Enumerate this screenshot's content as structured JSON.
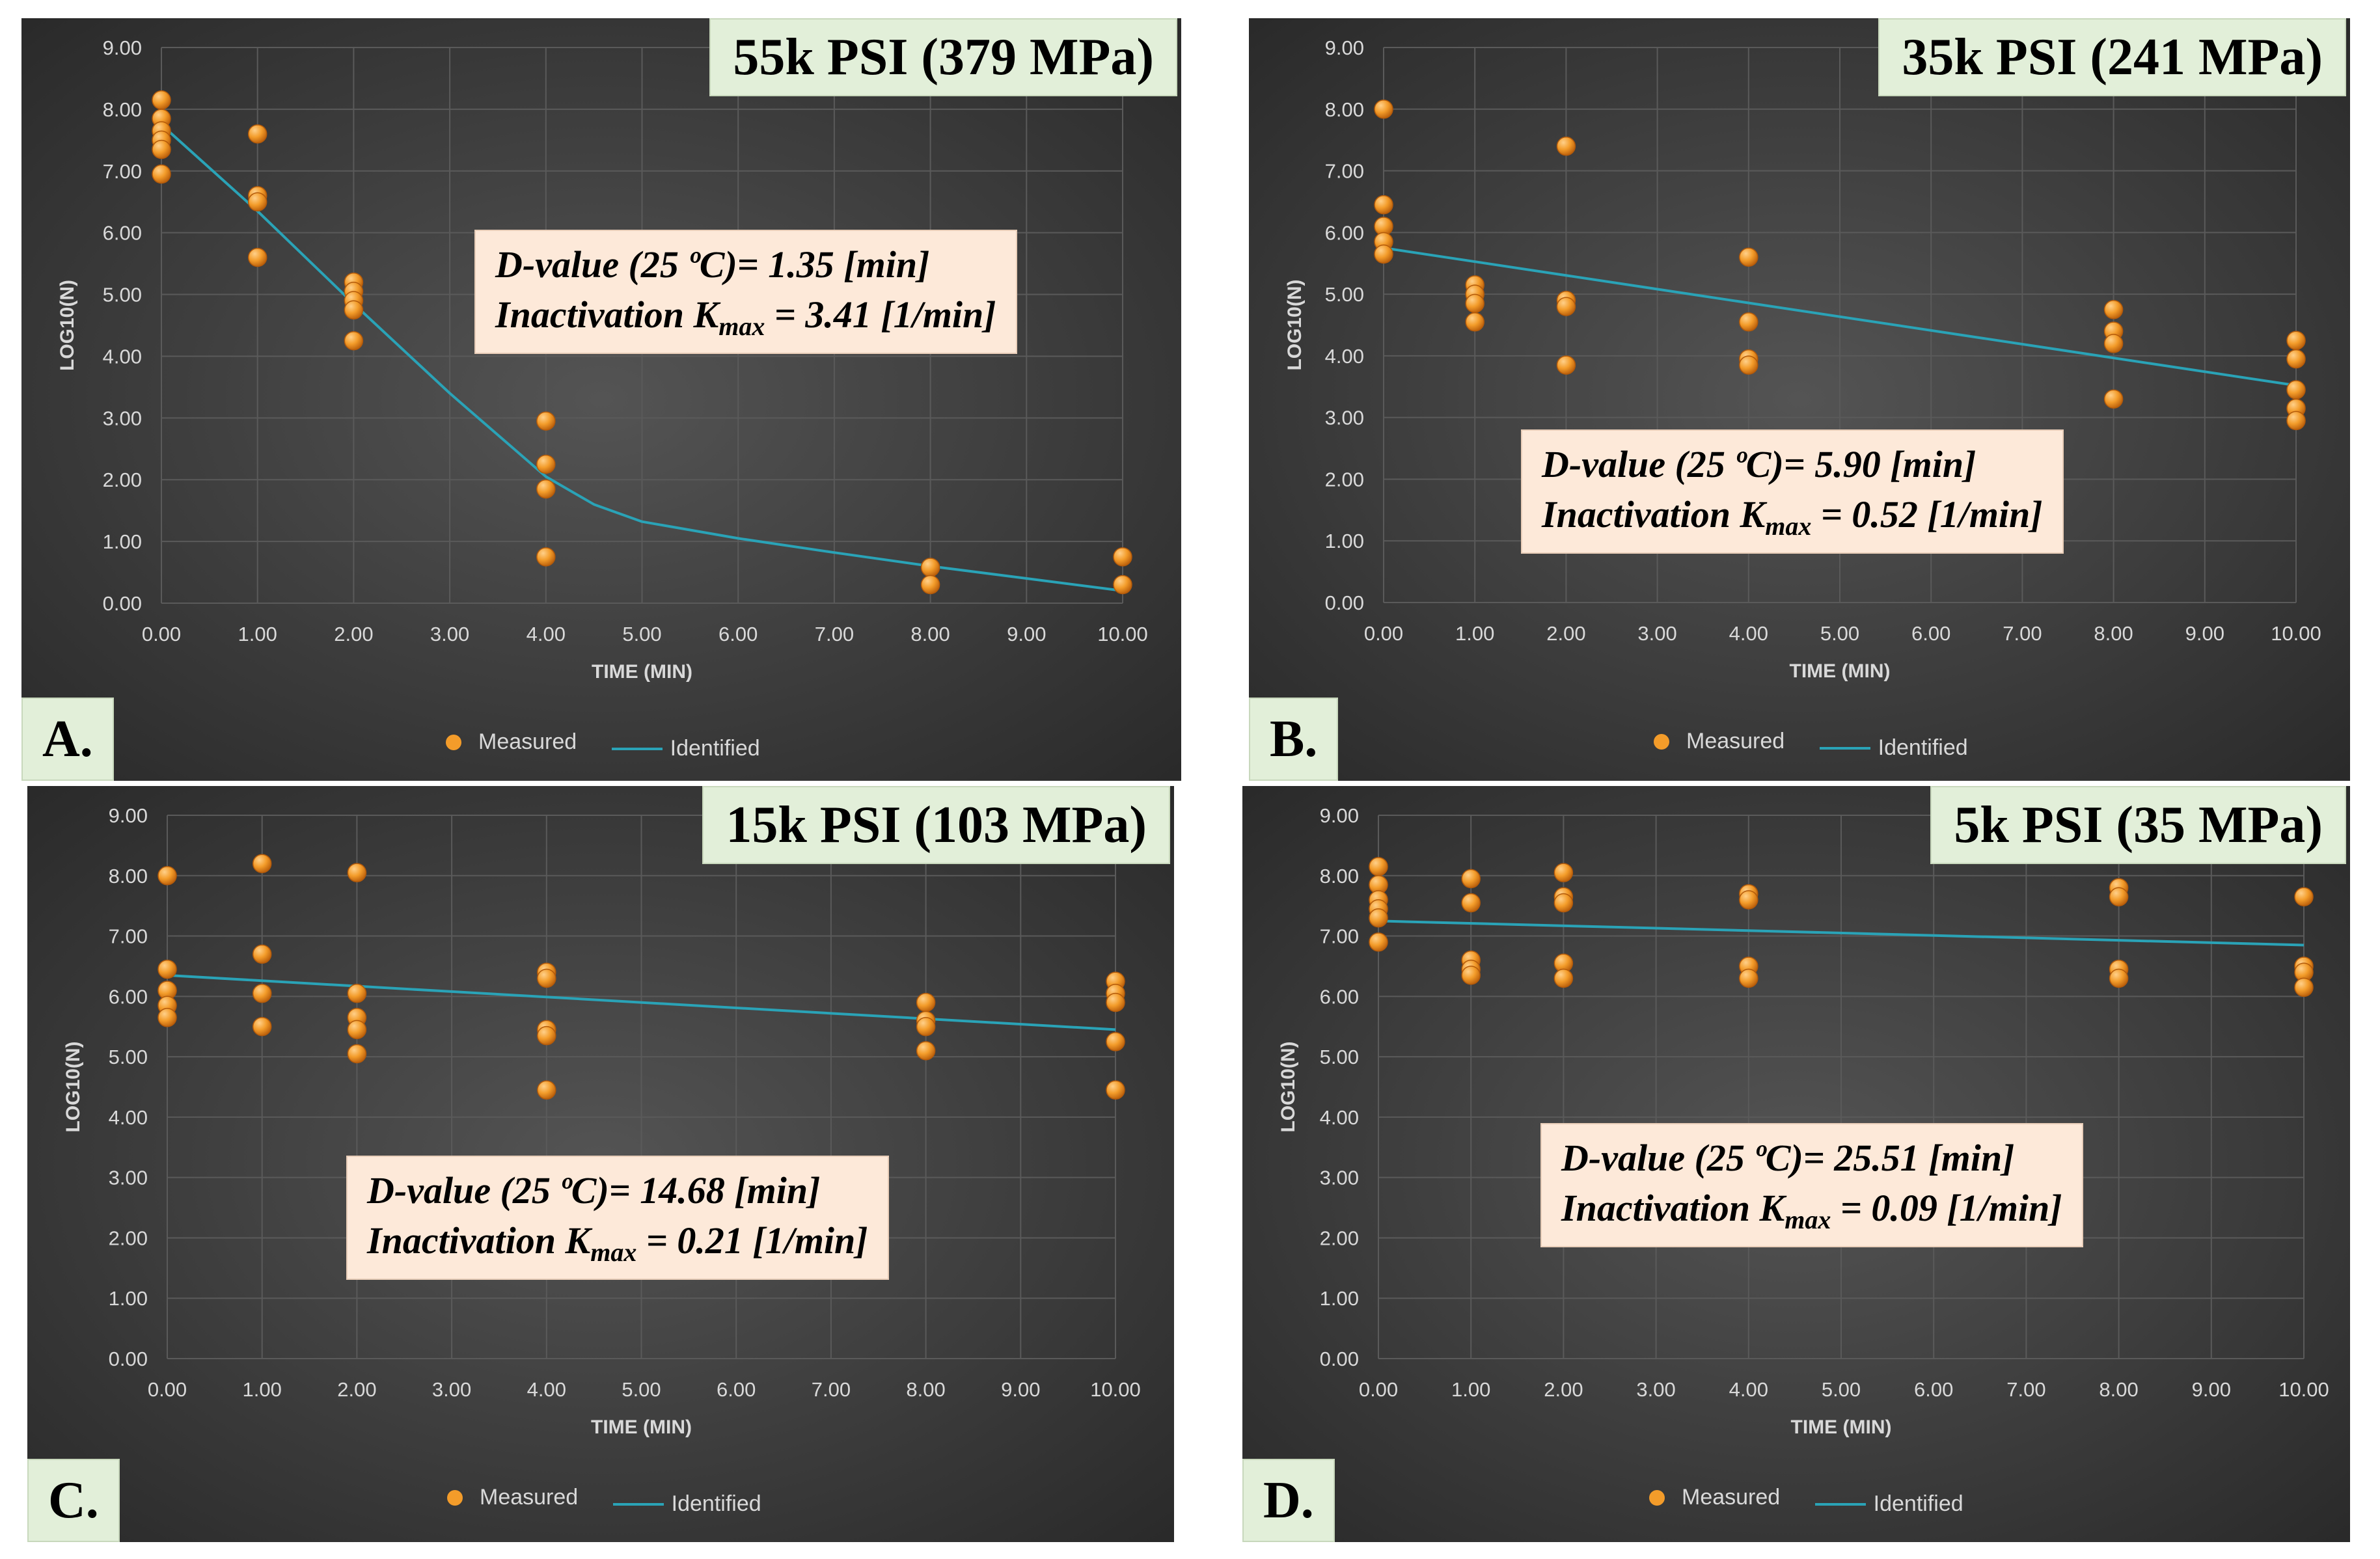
{
  "legend": {
    "measured": "Measured",
    "identified": "Identified"
  },
  "colors": {
    "measured": "#f39c2a",
    "identified": "#2aa3b7",
    "background": "#3b3b3b",
    "grid": "#5a5a5a"
  },
  "chart_data": [
    {
      "type": "scatter",
      "panel": "A.",
      "title": "55k PSI (379 MPa)",
      "info_line1": "D-value (25 ºC)= 1.35  [min]",
      "info_line2_pre": "Inactivation K",
      "info_line2_sub": "max",
      "info_line2_post": " = 3.41 [1/min]",
      "xlabel": "TIME (MIN)",
      "ylabel": "LOG10(N)",
      "xlim": [
        0,
        10
      ],
      "ylim": [
        0,
        9
      ],
      "xticks": [
        "0.00",
        "1.00",
        "2.00",
        "3.00",
        "4.00",
        "5.00",
        "6.00",
        "7.00",
        "8.00",
        "9.00",
        "10.00"
      ],
      "yticks": [
        "0.00",
        "1.00",
        "2.00",
        "3.00",
        "4.00",
        "5.00",
        "6.00",
        "7.00",
        "8.00",
        "9.00"
      ],
      "measured": [
        [
          0,
          8.15
        ],
        [
          0,
          7.85
        ],
        [
          0,
          7.65
        ],
        [
          0,
          7.5
        ],
        [
          0,
          7.35
        ],
        [
          0,
          6.95
        ],
        [
          1,
          7.6
        ],
        [
          1,
          6.6
        ],
        [
          1,
          6.5
        ],
        [
          1,
          5.6
        ],
        [
          2,
          5.2
        ],
        [
          2,
          5.05
        ],
        [
          2,
          4.9
        ],
        [
          2,
          4.75
        ],
        [
          2,
          4.25
        ],
        [
          4,
          2.95
        ],
        [
          4,
          2.25
        ],
        [
          4,
          1.85
        ],
        [
          4,
          0.75
        ],
        [
          8,
          0.58
        ],
        [
          8,
          0.3
        ],
        [
          10,
          0.75
        ],
        [
          10,
          0.3
        ]
      ],
      "identified": [
        [
          0,
          7.75
        ],
        [
          1,
          6.35
        ],
        [
          2,
          4.85
        ],
        [
          3,
          3.4
        ],
        [
          4,
          2.05
        ],
        [
          4.5,
          1.6
        ],
        [
          5,
          1.32
        ],
        [
          6,
          1.05
        ],
        [
          7,
          0.82
        ],
        [
          8,
          0.6
        ],
        [
          9,
          0.4
        ],
        [
          10,
          0.2
        ]
      ]
    },
    {
      "type": "scatter",
      "panel": "B.",
      "title": "35k PSI (241 MPa)",
      "info_line1": "D-value (25 ºC)= 5.90  [min]",
      "info_line2_pre": "Inactivation K",
      "info_line2_sub": "max",
      "info_line2_post": " = 0.52 [1/min]",
      "xlabel": "TIME (MIN)",
      "ylabel": "LOG10(N)",
      "xlim": [
        0,
        10
      ],
      "ylim": [
        0,
        9
      ],
      "xticks": [
        "0.00",
        "1.00",
        "2.00",
        "3.00",
        "4.00",
        "5.00",
        "6.00",
        "7.00",
        "8.00",
        "9.00",
        "10.00"
      ],
      "yticks": [
        "0.00",
        "1.00",
        "2.00",
        "3.00",
        "4.00",
        "5.00",
        "6.00",
        "7.00",
        "8.00",
        "9.00"
      ],
      "measured": [
        [
          0,
          8.0
        ],
        [
          0,
          6.45
        ],
        [
          0,
          6.1
        ],
        [
          0,
          5.85
        ],
        [
          0,
          5.65
        ],
        [
          1,
          5.15
        ],
        [
          1,
          5.0
        ],
        [
          1,
          4.85
        ],
        [
          1,
          4.55
        ],
        [
          2,
          7.4
        ],
        [
          2,
          4.9
        ],
        [
          2,
          4.8
        ],
        [
          2,
          3.85
        ],
        [
          4,
          5.6
        ],
        [
          4,
          4.55
        ],
        [
          4,
          3.95
        ],
        [
          4,
          3.85
        ],
        [
          8,
          4.75
        ],
        [
          8,
          4.4
        ],
        [
          8,
          4.2
        ],
        [
          8,
          3.3
        ],
        [
          10,
          4.25
        ],
        [
          10,
          3.95
        ],
        [
          10,
          3.45
        ],
        [
          10,
          3.15
        ],
        [
          10,
          2.95
        ]
      ],
      "identified": [
        [
          0,
          5.75
        ],
        [
          10,
          3.52
        ]
      ]
    },
    {
      "type": "scatter",
      "panel": "C.",
      "title": "15k PSI (103 MPa)",
      "info_line1": "D-value (25 ºC)= 14.68  [min]",
      "info_line2_pre": "Inactivation K",
      "info_line2_sub": "max",
      "info_line2_post": " = 0.21 [1/min]",
      "xlabel": "TIME (MIN)",
      "ylabel": "LOG10(N)",
      "xlim": [
        0,
        10
      ],
      "ylim": [
        0,
        9
      ],
      "xticks": [
        "0.00",
        "1.00",
        "2.00",
        "3.00",
        "4.00",
        "5.00",
        "6.00",
        "7.00",
        "8.00",
        "9.00",
        "10.00"
      ],
      "yticks": [
        "0.00",
        "1.00",
        "2.00",
        "3.00",
        "4.00",
        "5.00",
        "6.00",
        "7.00",
        "8.00",
        "9.00"
      ],
      "measured": [
        [
          0,
          8.0
        ],
        [
          0,
          6.45
        ],
        [
          0,
          6.1
        ],
        [
          0,
          5.85
        ],
        [
          0,
          5.65
        ],
        [
          1,
          8.2
        ],
        [
          1,
          6.7
        ],
        [
          1,
          6.05
        ],
        [
          1,
          5.5
        ],
        [
          2,
          8.05
        ],
        [
          2,
          6.05
        ],
        [
          2,
          5.65
        ],
        [
          2,
          5.45
        ],
        [
          2,
          5.05
        ],
        [
          4,
          6.4
        ],
        [
          4,
          6.3
        ],
        [
          4,
          5.45
        ],
        [
          4,
          5.35
        ],
        [
          4,
          4.45
        ],
        [
          8,
          5.9
        ],
        [
          8,
          5.6
        ],
        [
          8,
          5.5
        ],
        [
          8,
          5.1
        ],
        [
          10,
          6.25
        ],
        [
          10,
          6.05
        ],
        [
          10,
          5.9
        ],
        [
          10,
          5.25
        ],
        [
          10,
          4.45
        ]
      ],
      "identified": [
        [
          0,
          6.35
        ],
        [
          10,
          5.45
        ]
      ]
    },
    {
      "type": "scatter",
      "panel": "D.",
      "title": "5k PSI (35 MPa)",
      "info_line1": "D-value (25 ºC)= 25.51  [min]",
      "info_line2_pre": "Inactivation K",
      "info_line2_sub": "max",
      "info_line2_post": " = 0.09 [1/min]",
      "xlabel": "TIME (MIN)",
      "ylabel": "LOG10(N)",
      "xlim": [
        0,
        10
      ],
      "ylim": [
        0,
        9
      ],
      "xticks": [
        "0.00",
        "1.00",
        "2.00",
        "3.00",
        "4.00",
        "5.00",
        "6.00",
        "7.00",
        "8.00",
        "9.00",
        "10.00"
      ],
      "yticks": [
        "0.00",
        "1.00",
        "2.00",
        "3.00",
        "4.00",
        "5.00",
        "6.00",
        "7.00",
        "8.00",
        "9.00"
      ],
      "measured": [
        [
          0,
          8.15
        ],
        [
          0,
          7.85
        ],
        [
          0,
          7.6
        ],
        [
          0,
          7.45
        ],
        [
          0,
          7.3
        ],
        [
          0,
          6.9
        ],
        [
          1,
          7.95
        ],
        [
          1,
          7.55
        ],
        [
          1,
          6.6
        ],
        [
          1,
          6.45
        ],
        [
          1,
          6.35
        ],
        [
          2,
          8.05
        ],
        [
          2,
          7.65
        ],
        [
          2,
          7.55
        ],
        [
          2,
          6.55
        ],
        [
          2,
          6.3
        ],
        [
          4,
          7.7
        ],
        [
          4,
          7.6
        ],
        [
          4,
          6.5
        ],
        [
          4,
          6.3
        ],
        [
          8,
          7.8
        ],
        [
          8,
          7.65
        ],
        [
          8,
          6.45
        ],
        [
          8,
          6.3
        ],
        [
          10,
          7.65
        ],
        [
          10,
          6.5
        ],
        [
          10,
          6.4
        ],
        [
          10,
          6.15
        ]
      ],
      "identified": [
        [
          0,
          7.25
        ],
        [
          10,
          6.85
        ]
      ]
    }
  ]
}
